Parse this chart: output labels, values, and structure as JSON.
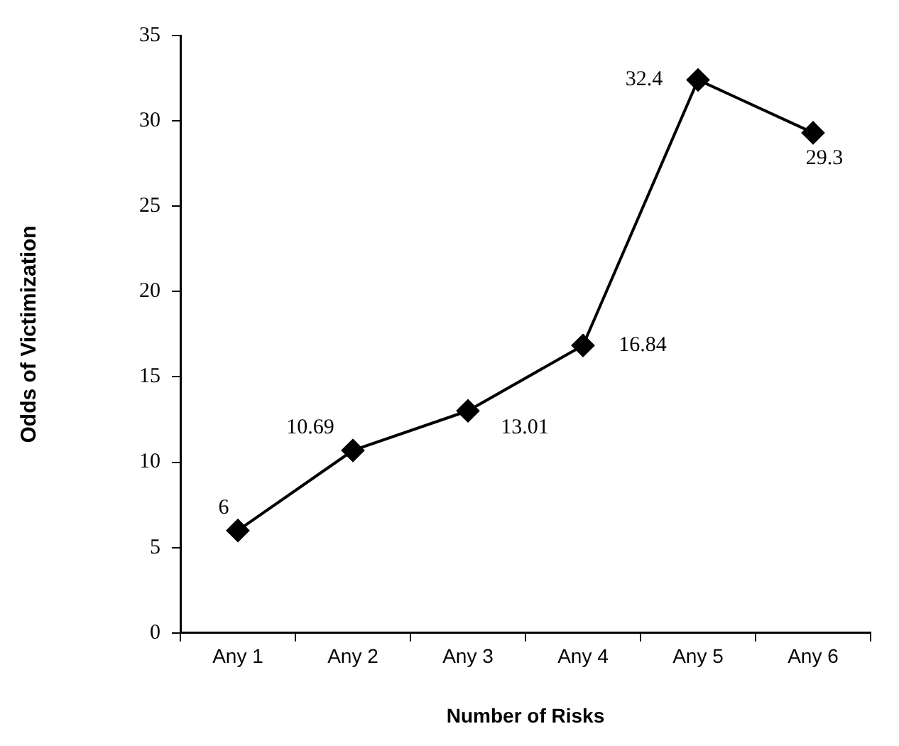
{
  "chart_data": {
    "type": "line",
    "xlabel": "Number of Risks",
    "ylabel": "Odds of Victimization",
    "categories": [
      "Any 1",
      "Any 2",
      "Any 3",
      "Any 4",
      "Any 5",
      "Any 6"
    ],
    "series": [
      {
        "color": "#000000",
        "values": [
          6,
          10.69,
          13.01,
          16.84,
          32.4,
          29.3
        ]
      }
    ],
    "ylim": [
      0,
      35
    ],
    "yticks": [
      0,
      5,
      10,
      15,
      20,
      25,
      30,
      35
    ],
    "data_labels": true,
    "marker": "diamond",
    "line_style": "solid",
    "grid": false,
    "legend": false
  }
}
